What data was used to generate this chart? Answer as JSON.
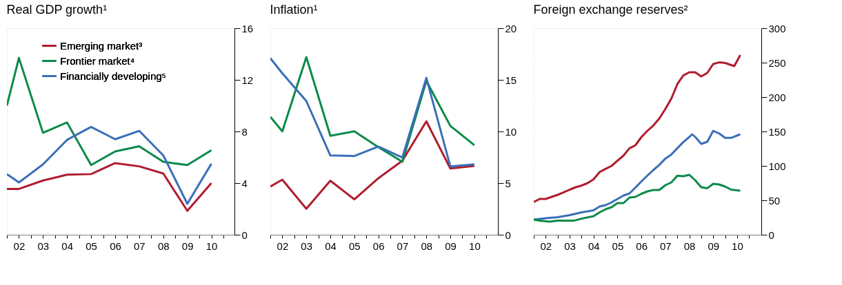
{
  "chart_data": [
    {
      "type": "line",
      "title": "Real GDP growth¹",
      "legend": "top left",
      "grid": true,
      "xlim": [
        2001.5,
        2010.96
      ],
      "ylim": [
        0,
        16
      ],
      "yticks": [
        0,
        4,
        8,
        12,
        16
      ],
      "xticks": [
        {
          "value": 2001.5,
          "label": null
        },
        {
          "value": 2002,
          "label": "02"
        },
        {
          "value": 2002.5,
          "label": null
        },
        {
          "value": 2003,
          "label": "03"
        },
        {
          "value": 2003.5,
          "label": null
        },
        {
          "value": 2004,
          "label": "04"
        },
        {
          "value": 2004.5,
          "label": null
        },
        {
          "value": 2005,
          "label": "05"
        },
        {
          "value": 2005.5,
          "label": null
        },
        {
          "value": 2006,
          "label": "06"
        },
        {
          "value": 2006.5,
          "label": null
        },
        {
          "value": 2007,
          "label": "07"
        },
        {
          "value": 2007.5,
          "label": null
        },
        {
          "value": 2008,
          "label": "08"
        },
        {
          "value": 2008.5,
          "label": null
        },
        {
          "value": 2009,
          "label": "09"
        },
        {
          "value": 2009.5,
          "label": null
        },
        {
          "value": 2010,
          "label": "10"
        },
        {
          "value": 2010.5,
          "label": null
        }
      ],
      "x": [
        2001.5,
        2002,
        2003,
        2004,
        2005,
        2006,
        2007,
        2008,
        2009,
        2010
      ],
      "series": [
        {
          "name": "Emerging market³",
          "color": "#b01c2e",
          "values": [
            3.55,
            3.55,
            4.2,
            4.65,
            4.7,
            5.55,
            5.3,
            4.75,
            1.85,
            4.0
          ]
        },
        {
          "name": "Frontier market⁴",
          "color": "#0a8a4a",
          "values": [
            10.0,
            13.7,
            7.9,
            8.7,
            5.4,
            6.45,
            6.85,
            5.65,
            5.4,
            6.55
          ]
        },
        {
          "name": "Financially developing⁵",
          "color": "#3a6fb8",
          "values": [
            4.7,
            4.05,
            5.45,
            7.35,
            8.35,
            7.4,
            8.05,
            6.15,
            2.4,
            5.5
          ]
        }
      ]
    },
    {
      "type": "line",
      "title": "Inflation¹",
      "grid": true,
      "xlim": [
        2001.5,
        2010.98
      ],
      "ylim": [
        0,
        20
      ],
      "yticks": [
        0,
        5,
        10,
        15,
        20
      ],
      "xticks": [
        {
          "value": 2001.5,
          "label": null
        },
        {
          "value": 2002,
          "label": "02"
        },
        {
          "value": 2002.5,
          "label": null
        },
        {
          "value": 2003,
          "label": "03"
        },
        {
          "value": 2003.5,
          "label": null
        },
        {
          "value": 2004,
          "label": "04"
        },
        {
          "value": 2004.5,
          "label": null
        },
        {
          "value": 2005,
          "label": "05"
        },
        {
          "value": 2005.5,
          "label": null
        },
        {
          "value": 2006,
          "label": "06"
        },
        {
          "value": 2006.5,
          "label": null
        },
        {
          "value": 2007,
          "label": "07"
        },
        {
          "value": 2007.5,
          "label": null
        },
        {
          "value": 2008,
          "label": "08"
        },
        {
          "value": 2008.5,
          "label": null
        },
        {
          "value": 2009,
          "label": "09"
        },
        {
          "value": 2009.5,
          "label": null
        },
        {
          "value": 2010,
          "label": "10"
        },
        {
          "value": 2010.5,
          "label": null
        }
      ],
      "x": [
        2001.5,
        2002,
        2003,
        2004,
        2005,
        2006,
        2007,
        2008,
        2009,
        2010
      ],
      "series": [
        {
          "color": "#b01c2e",
          "values": [
            4.67,
            5.33,
            2.52,
            5.23,
            3.43,
            5.47,
            7.17,
            10.98,
            6.41,
            6.67
          ]
        },
        {
          "color": "#0a8a4a",
          "values": [
            11.42,
            10.02,
            17.2,
            9.58,
            10.02,
            8.48,
            7.07,
            14.9,
            10.54,
            8.68
          ]
        },
        {
          "color": "#3a6fb8",
          "values": [
            17.1,
            15.63,
            12.95,
            7.68,
            7.62,
            8.54,
            7.48,
            15.19,
            6.61,
            6.81
          ]
        }
      ]
    },
    {
      "type": "line",
      "title": "Foreign exchange reserves²",
      "grid": true,
      "xlim": [
        2001.5,
        2011.01
      ],
      "ylim": [
        0,
        300
      ],
      "yticks": [
        0,
        50,
        100,
        150,
        200,
        250,
        300
      ],
      "xticks": [
        {
          "value": 2001.5,
          "label": null
        },
        {
          "value": 2002,
          "label": "02"
        },
        {
          "value": 2002.5,
          "label": null
        },
        {
          "value": 2003,
          "label": "03"
        },
        {
          "value": 2003.5,
          "label": null
        },
        {
          "value": 2004,
          "label": "04"
        },
        {
          "value": 2004.5,
          "label": null
        },
        {
          "value": 2005,
          "label": "05"
        },
        {
          "value": 2005.5,
          "label": null
        },
        {
          "value": 2006,
          "label": "06"
        },
        {
          "value": 2006.5,
          "label": null
        },
        {
          "value": 2007,
          "label": "07"
        },
        {
          "value": 2007.5,
          "label": null
        },
        {
          "value": 2008,
          "label": "08"
        },
        {
          "value": 2008.5,
          "label": null
        },
        {
          "value": 2009,
          "label": "09"
        },
        {
          "value": 2009.5,
          "label": null
        },
        {
          "value": 2010,
          "label": "10"
        },
        {
          "value": 2010.5,
          "label": null
        }
      ],
      "series": [
        {
          "color": "#b01c2e",
          "x": [
            2001.5,
            2001.75,
            2002.0,
            2002.25,
            2002.5,
            2002.75,
            2003.0,
            2003.25,
            2003.5,
            2003.75,
            2004.0,
            2004.25,
            2004.5,
            2004.75,
            2005.0,
            2005.25,
            2005.5,
            2005.75,
            2006.0,
            2006.25,
            2006.5,
            2006.75,
            2007.0,
            2007.25,
            2007.5,
            2007.75,
            2008.0,
            2008.25,
            2008.5,
            2008.75,
            2009.0,
            2009.25,
            2009.5,
            2009.88,
            2010.13
          ],
          "values": [
            47.5,
            52,
            52,
            55,
            58,
            61.6,
            65.5,
            69,
            71.5,
            75,
            80.5,
            91,
            95.6,
            100,
            107.6,
            115,
            125.6,
            130,
            142,
            151,
            158.7,
            169,
            182.7,
            197.8,
            218.8,
            231.4,
            236,
            236,
            230,
            235,
            248,
            250.4,
            249.5,
            245,
            261
          ]
        },
        {
          "color": "#3a6fb8",
          "x": [
            2001.5,
            2002.0,
            2002.5,
            2003.0,
            2003.5,
            2004.0,
            2004.25,
            2004.5,
            2004.75,
            2005.0,
            2005.25,
            2005.5,
            2005.75,
            2006.0,
            2006.25,
            2006.5,
            2006.75,
            2007.0,
            2007.25,
            2007.5,
            2007.75,
            2008.0,
            2008.12,
            2008.25,
            2008.5,
            2008.75,
            2009.0,
            2009.25,
            2009.5,
            2009.75,
            2010.13
          ],
          "values": [
            22,
            24,
            25.5,
            28.5,
            32.5,
            35.5,
            41,
            43,
            47,
            52,
            57,
            60,
            68.5,
            77.5,
            86,
            94,
            101.6,
            110.6,
            116.6,
            125.6,
            134.6,
            142,
            146,
            142,
            132,
            135,
            151,
            147,
            140.7,
            140.7,
            146
          ]
        },
        {
          "color": "#0a8a4a",
          "x": [
            2001.5,
            2001.75,
            2002.15,
            2002.5,
            2003.17,
            2003.5,
            2004.0,
            2004.25,
            2004.5,
            2004.75,
            2005.0,
            2005.25,
            2005.5,
            2005.75,
            2006.0,
            2006.25,
            2006.5,
            2006.75,
            2007.0,
            2007.25,
            2007.5,
            2007.75,
            2008.0,
            2008.25,
            2008.5,
            2008.75,
            2009.0,
            2009.25,
            2009.5,
            2009.75,
            2010.13
          ],
          "values": [
            22,
            20.4,
            19,
            20.4,
            20.4,
            23.4,
            27,
            32.5,
            37,
            40,
            46,
            46,
            54,
            55,
            59.5,
            63,
            65,
            65,
            72,
            76,
            85.7,
            85,
            87,
            79,
            69,
            67.6,
            74,
            73,
            70,
            65.5,
            64
          ]
        }
      ]
    }
  ]
}
